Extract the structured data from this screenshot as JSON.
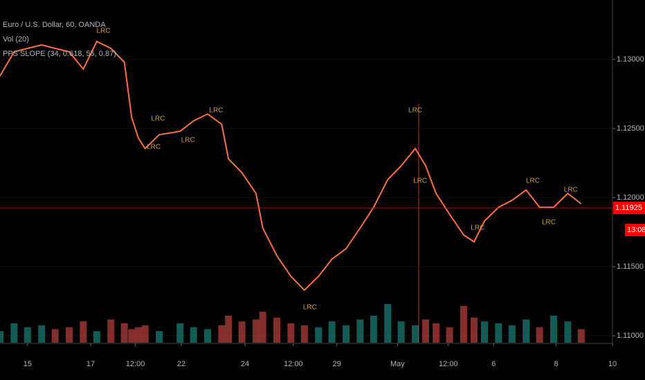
{
  "chart_data": [
    {
      "type": "line",
      "legend_lines": [
        "Euro / U.S. Dollar, 60, OANDA",
        "Vol (20)",
        "PPS SLOPE (34, 0.618, 55, 0.87)"
      ],
      "x": [
        0,
        2.3,
        4.5,
        6.8,
        9,
        11.3,
        13.6,
        15.8,
        18.1,
        20.3,
        21.5,
        22.6,
        23.7,
        26,
        29.4,
        31.6,
        33.9,
        36.2,
        37.3,
        39.5,
        41.8,
        42.9,
        45.2,
        47.5,
        49.7,
        52,
        54.2,
        56.5,
        58.8,
        61,
        63.3,
        65.5,
        67.8,
        69.5,
        71.2,
        73.4,
        75.7,
        77.4,
        79.1,
        81.4,
        83.6,
        85.9,
        88.1,
        90.4,
        92.7,
        94.9
      ],
      "series": [
        {
          "color": "#ff7043",
          "values": [
            1.1288,
            1.13055,
            1.1308,
            1.13105,
            1.1308,
            1.13055,
            1.1293,
            1.1313,
            1.1308,
            1.1298,
            1.1258,
            1.1243,
            1.12355,
            1.12455,
            1.1248,
            1.12555,
            1.12605,
            1.1253,
            1.1228,
            1.1218,
            1.1203,
            1.1178,
            1.1158,
            1.1143,
            1.1133,
            1.1143,
            1.11555,
            1.1163,
            1.1178,
            1.1193,
            1.1213,
            1.1223,
            1.12355,
            1.1223,
            1.1203,
            1.1188,
            1.1173,
            1.1168,
            1.1183,
            1.1193,
            1.1198,
            1.12055,
            1.1193,
            1.1193,
            1.1203,
            1.11955
          ]
        }
      ],
      "annotations": [
        {
          "text": "LRC",
          "x": 16.9,
          "y": 1.13205
        },
        {
          "text": "LRC",
          "x": 25.8,
          "y": 1.1257
        },
        {
          "text": "LRC",
          "x": 25.1,
          "y": 1.12365
        },
        {
          "text": "LRC",
          "x": 30.7,
          "y": 1.12415
        },
        {
          "text": "LRC",
          "x": 35.3,
          "y": 1.1263
        },
        {
          "text": "LRC",
          "x": 50.6,
          "y": 1.11205
        },
        {
          "text": "LRC",
          "x": 68.6,
          "y": 1.1212
        },
        {
          "text": "LRC",
          "x": 67.8,
          "y": 1.1263
        },
        {
          "text": "LRC",
          "x": 78,
          "y": 1.1178
        },
        {
          "text": "LRC",
          "x": 89.6,
          "y": 1.1182
        },
        {
          "text": "LRC",
          "x": 87,
          "y": 1.1212
        },
        {
          "text": "LRC",
          "x": 93.2,
          "y": 1.12055
        }
      ],
      "last_price": 1.11925,
      "last_price_color": "#ff0000",
      "countdown": "13:08",
      "xlim": [
        0,
        100
      ],
      "xticks": [
        {
          "value": 4.5,
          "label": "15"
        },
        {
          "value": 14.8,
          "label": "17"
        },
        {
          "value": 22.1,
          "label": "12:00"
        },
        {
          "value": 29.6,
          "label": "22"
        },
        {
          "value": 40,
          "label": "24"
        },
        {
          "value": 47.9,
          "label": "12:00"
        },
        {
          "value": 55,
          "label": "29"
        },
        {
          "value": 64.9,
          "label": "May"
        },
        {
          "value": 73.2,
          "label": "12:00"
        },
        {
          "value": 80.6,
          "label": "6"
        },
        {
          "value": 90.8,
          "label": "8"
        },
        {
          "value": 100,
          "label": "10"
        }
      ],
      "ylim": [
        1.1095,
        1.1343
      ],
      "yticks": [
        {
          "value": 1.11,
          "label": "1.11000"
        },
        {
          "value": 1.115,
          "label": "1.11500"
        },
        {
          "value": 1.12,
          "label": "1.12000"
        },
        {
          "value": 1.125,
          "label": "1.12500"
        },
        {
          "value": 1.13,
          "label": "1.13000"
        }
      ]
    },
    {
      "type": "bar",
      "values": [
        30,
        50,
        40,
        45,
        35,
        40,
        55,
        30,
        60,
        50,
        35,
        40,
        45,
        30,
        50,
        40,
        35,
        45,
        70,
        55,
        60,
        80,
        65,
        50,
        45,
        40,
        55,
        45,
        60,
        70,
        100,
        55,
        45,
        60,
        50,
        40,
        95,
        65,
        55,
        50,
        45,
        60,
        40,
        70,
        55,
        35
      ],
      "up_color": "#26a69a",
      "down_color": "#ef5350",
      "ylim": [
        0,
        100
      ]
    }
  ]
}
